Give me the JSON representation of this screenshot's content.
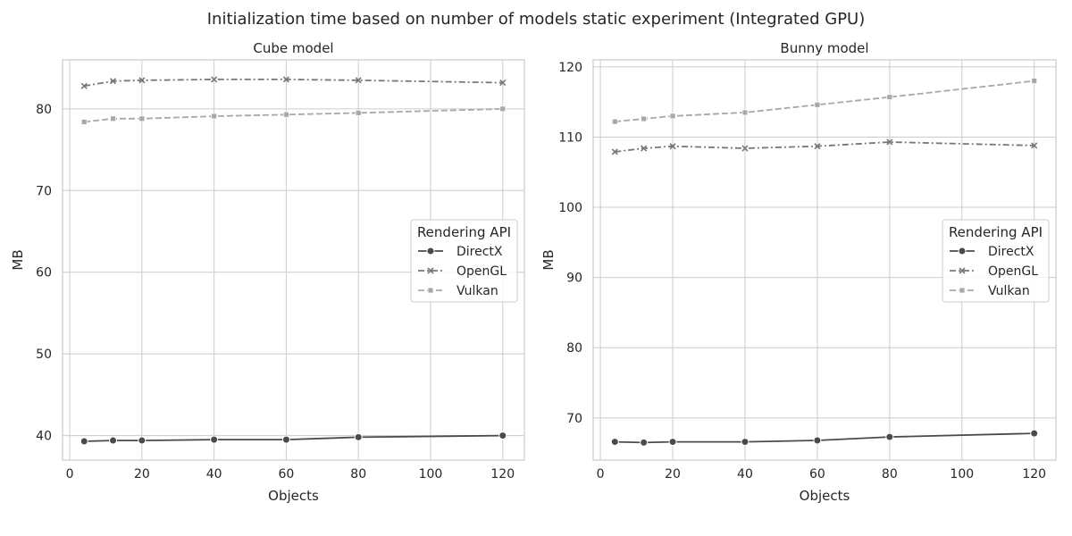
{
  "figure": {
    "title": "Initialization time based on number of models static experiment (Integrated GPU)"
  },
  "legend_labels": {
    "title": "Rendering API"
  },
  "chart_data": [
    {
      "type": "line",
      "title": "Cube model",
      "xlabel": "Objects",
      "ylabel": "MB",
      "xlim": [
        -2,
        126
      ],
      "ylim": [
        37,
        86
      ],
      "xticks": [
        0,
        20,
        40,
        60,
        80,
        100,
        120
      ],
      "yticks": [
        40,
        50,
        60,
        70,
        80
      ],
      "grid": true,
      "legend_title": "Rendering API",
      "legend_position": "center-right",
      "x": [
        4,
        12,
        20,
        40,
        60,
        80,
        120
      ],
      "series": [
        {
          "name": "DirectX",
          "color": "#4a4a4a",
          "marker": "circle",
          "dash": "solid",
          "values": [
            39.3,
            39.4,
            39.4,
            39.5,
            39.5,
            39.8,
            40.0
          ]
        },
        {
          "name": "OpenGL",
          "color": "#777777",
          "marker": "x",
          "dash": "dashdot",
          "values": [
            82.8,
            83.4,
            83.5,
            83.6,
            83.6,
            83.5,
            83.2
          ]
        },
        {
          "name": "Vulkan",
          "color": "#a8a8a8",
          "marker": "square",
          "dash": "dash",
          "values": [
            78.4,
            78.8,
            78.8,
            79.1,
            79.3,
            79.5,
            80.0
          ]
        }
      ]
    },
    {
      "type": "line",
      "title": "Bunny model",
      "xlabel": "Objects",
      "ylabel": "MB",
      "xlim": [
        -2,
        126
      ],
      "ylim": [
        64,
        121
      ],
      "xticks": [
        0,
        20,
        40,
        60,
        80,
        100,
        120
      ],
      "yticks": [
        70,
        80,
        90,
        100,
        110,
        120
      ],
      "grid": true,
      "legend_title": "Rendering API",
      "legend_position": "center-right",
      "x": [
        4,
        12,
        20,
        40,
        60,
        80,
        120
      ],
      "series": [
        {
          "name": "DirectX",
          "color": "#4a4a4a",
          "marker": "circle",
          "dash": "solid",
          "values": [
            66.6,
            66.5,
            66.6,
            66.6,
            66.8,
            67.3,
            67.8
          ]
        },
        {
          "name": "OpenGL",
          "color": "#777777",
          "marker": "x",
          "dash": "dashdot",
          "values": [
            107.9,
            108.4,
            108.7,
            108.4,
            108.7,
            109.3,
            108.8
          ]
        },
        {
          "name": "Vulkan",
          "color": "#a8a8a8",
          "marker": "square",
          "dash": "dash",
          "values": [
            112.2,
            112.6,
            113.0,
            113.5,
            114.6,
            115.7,
            118.0
          ]
        }
      ]
    }
  ]
}
